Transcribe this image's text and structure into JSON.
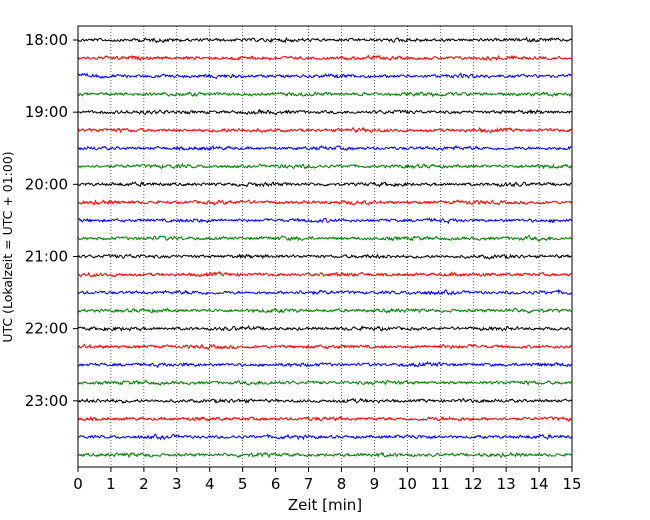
{
  "chart_data": {
    "type": "line",
    "title": "",
    "xlabel": "Zeit  [min]",
    "ylabel": "UTC (Lokalzeit = UTC + 01:00)",
    "xlim": [
      0,
      15
    ],
    "x_ticks": [
      "0",
      "1",
      "2",
      "3",
      "4",
      "5",
      "6",
      "7",
      "8",
      "9",
      "10",
      "11",
      "12",
      "13",
      "14",
      "15"
    ],
    "y_ticks": [
      "18:00",
      "19:00",
      "20:00",
      "21:00",
      "22:00",
      "23:00"
    ],
    "vertical_grid": "dotted",
    "trace_start": "18:00",
    "trace_interval_minutes": 15,
    "trace_count": 24,
    "trace_colors": [
      "#000000",
      "#ff0000",
      "#0000ff",
      "#008000"
    ]
  }
}
